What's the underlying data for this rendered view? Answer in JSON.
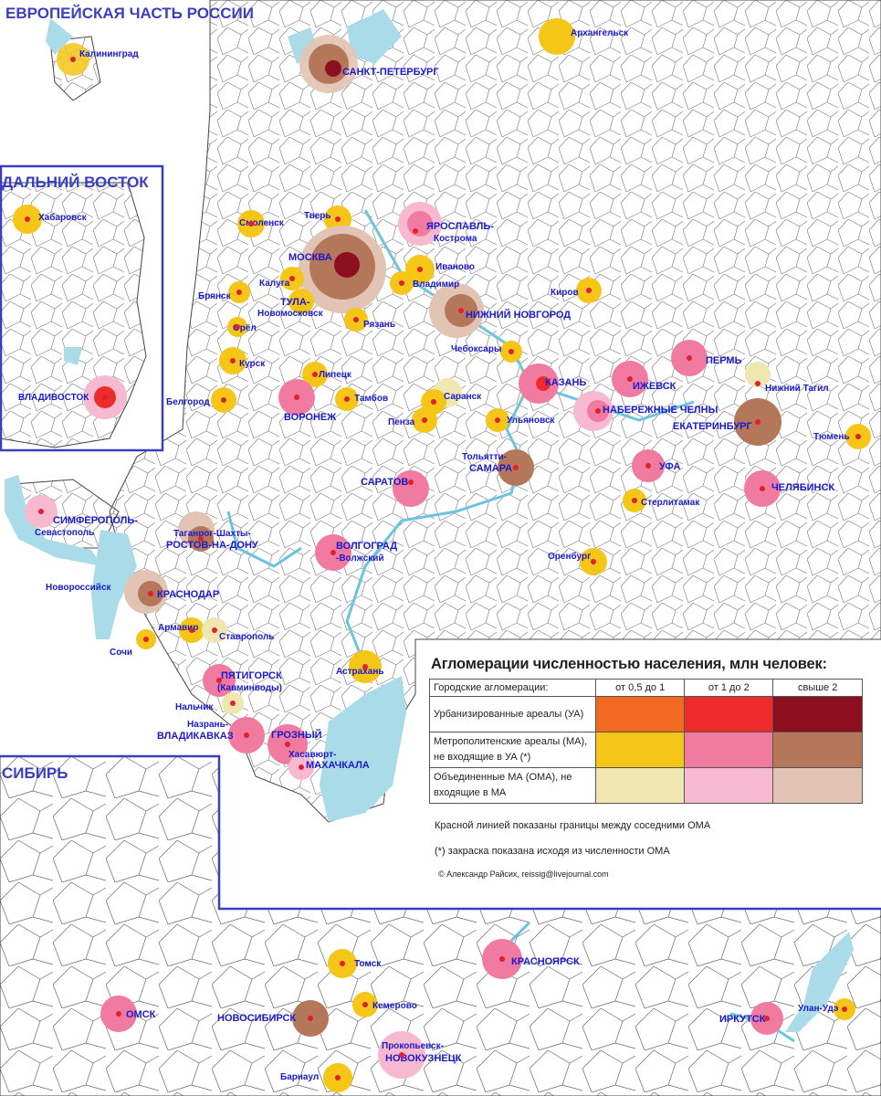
{
  "region_titles": {
    "european": "ЕВРОПЕЙСКАЯ ЧАСТЬ РОССИИ",
    "far_east": "ДАЛЬНИЙ ВОСТОК",
    "siberia": "СИБИРЬ"
  },
  "cities": [
    {
      "id": "kaliningrad",
      "label": "Калининград"
    },
    {
      "id": "spb",
      "label": "САНКТ-ПЕТЕРБУРГ"
    },
    {
      "id": "arkhangelsk",
      "label": "Архангельск"
    },
    {
      "id": "khabarovsk",
      "label": "Хабаровск"
    },
    {
      "id": "vladivostok",
      "label": "ВЛАДИВОСТОК"
    },
    {
      "id": "smolensk",
      "label": "Смоленск"
    },
    {
      "id": "tver",
      "label": "Тверь"
    },
    {
      "id": "yaroslavl",
      "label": "ЯРОСЛАВЛЬ-"
    },
    {
      "id": "kostroma",
      "label": "Кострома"
    },
    {
      "id": "moscow",
      "label": "МОСКВА"
    },
    {
      "id": "ivanovo",
      "label": "Иваново"
    },
    {
      "id": "vladimir",
      "label": "Владимир"
    },
    {
      "id": "kaluga",
      "label": "Калуга"
    },
    {
      "id": "tula",
      "label": "ТУЛА-"
    },
    {
      "id": "novomoskovsk",
      "label": "Новомосковск"
    },
    {
      "id": "bryansk",
      "label": "Брянск"
    },
    {
      "id": "orel",
      "label": "Орёл"
    },
    {
      "id": "ryazan",
      "label": "Рязань"
    },
    {
      "id": "nnovgorod",
      "label": "НИЖНИЙ НОВГОРОД"
    },
    {
      "id": "kirov",
      "label": "Киров"
    },
    {
      "id": "kursk",
      "label": "Курск"
    },
    {
      "id": "lipetsk",
      "label": "Липецк"
    },
    {
      "id": "cheboksary",
      "label": "Чебоксары"
    },
    {
      "id": "kazan",
      "label": "КАЗАНЬ"
    },
    {
      "id": "perm",
      "label": "ПЕРМЬ"
    },
    {
      "id": "izhevsk",
      "label": "ИЖЕВСК"
    },
    {
      "id": "ntagil",
      "label": "Нижний Тагил"
    },
    {
      "id": "belgorod",
      "label": "Белгород"
    },
    {
      "id": "voronezh",
      "label": "ВОРОНЕЖ"
    },
    {
      "id": "tambov",
      "label": "Тамбов"
    },
    {
      "id": "saransk",
      "label": "Саранск"
    },
    {
      "id": "penza",
      "label": "Пенза"
    },
    {
      "id": "ulyanovsk",
      "label": "Ульяновск"
    },
    {
      "id": "nchelny",
      "label": "НАБЕРЕЖНЫЕ ЧЕЛНЫ"
    },
    {
      "id": "ekb",
      "label": "ЕКАТЕРИНБУРГ"
    },
    {
      "id": "tyumen",
      "label": "Тюмень"
    },
    {
      "id": "togliatti",
      "label": "Тольятти-"
    },
    {
      "id": "samara",
      "label": "САМАРА"
    },
    {
      "id": "saratov",
      "label": "САРАТОВ"
    },
    {
      "id": "ufa",
      "label": "УФА"
    },
    {
      "id": "chelyabinsk",
      "label": "ЧЕЛЯБИНСК"
    },
    {
      "id": "sterlitamak",
      "label": "Стерлитамак"
    },
    {
      "id": "simferopol",
      "label": "СИМФЕРОПОЛЬ-"
    },
    {
      "id": "sevastopol",
      "label": "Севастополь"
    },
    {
      "id": "taganrog",
      "label": "Таганрог-Шахты-"
    },
    {
      "id": "rostov",
      "label": "РОСТОВ-НА-ДОНУ"
    },
    {
      "id": "volgograd",
      "label": "ВОЛГОГРАД"
    },
    {
      "id": "volzhsky",
      "label": "-Волжский"
    },
    {
      "id": "orenburg",
      "label": "Оренбург"
    },
    {
      "id": "novorossiysk",
      "label": "Новороссийск"
    },
    {
      "id": "krasnodar",
      "label": "КРАСНОДАР"
    },
    {
      "id": "armavir",
      "label": "Армавир"
    },
    {
      "id": "stavropol",
      "label": "Ставрополь"
    },
    {
      "id": "sochi",
      "label": "Сочи"
    },
    {
      "id": "astrakhan",
      "label": "Астрахань"
    },
    {
      "id": "pyatigorsk",
      "label": "ПЯТИГОРСК"
    },
    {
      "id": "kavminvody",
      "label": "(Кавминводы)"
    },
    {
      "id": "nalchik",
      "label": "Нальчик"
    },
    {
      "id": "nazran",
      "label": "Назрань-"
    },
    {
      "id": "vladikavkaz",
      "label": "ВЛАДИКАВКАЗ"
    },
    {
      "id": "grozny",
      "label": "ГРОЗНЫЙ"
    },
    {
      "id": "khasavyurt",
      "label": "Хасавюрт-"
    },
    {
      "id": "makhachkala",
      "label": "МАХАЧКАЛА"
    },
    {
      "id": "tomsk",
      "label": "Томск"
    },
    {
      "id": "krasnoyarsk",
      "label": "КРАСНОЯРСК"
    },
    {
      "id": "omsk",
      "label": "ОМСК"
    },
    {
      "id": "novosibirsk",
      "label": "НОВОСИБИРСК"
    },
    {
      "id": "kemerovo",
      "label": "Кемерово"
    },
    {
      "id": "irkutsk",
      "label": "ИРКУТСК"
    },
    {
      "id": "ulanude",
      "label": "Улан-Удэ"
    },
    {
      "id": "prokopyevsk",
      "label": "Прокопьевск-"
    },
    {
      "id": "novokuznetsk",
      "label": "НОВОКУЗНЕЦК"
    },
    {
      "id": "barnaul",
      "label": "Барнаул"
    }
  ],
  "legend": {
    "title": "Агломерации численностью населения, млн  человек:",
    "header_row": "Городские агломерации:",
    "columns": [
      "от 0,5 до 1",
      "от 1 до 2",
      "свыше 2"
    ],
    "rows": [
      {
        "label": "Урбанизированные ареалы (УА)",
        "colors": [
          "#f26a21",
          "#ee2b2b",
          "#8b0f1f"
        ]
      },
      {
        "label": "Метрополитенские ареалы (МА), не входящие в УА (*)",
        "colors": [
          "#f5c518",
          "#f07aa0",
          "#b5775a"
        ]
      },
      {
        "label": "Объединенные МА (ОМА), не входящие в МА",
        "colors": [
          "#efe6b0",
          "#f7b9cf",
          "#e2c4b4"
        ]
      }
    ],
    "note_red_line": "Красной линией показаны границы между соседними ОМА",
    "note_star": "(*) закраска показана исходя из численности ОМА",
    "copyright": "© Александр Райсих, reissig@livejournal.com"
  },
  "colors": {
    "water": "#a9dbe8",
    "border": "#444444",
    "region_frame": "#3a3fbf",
    "label": "#1a1acc"
  }
}
